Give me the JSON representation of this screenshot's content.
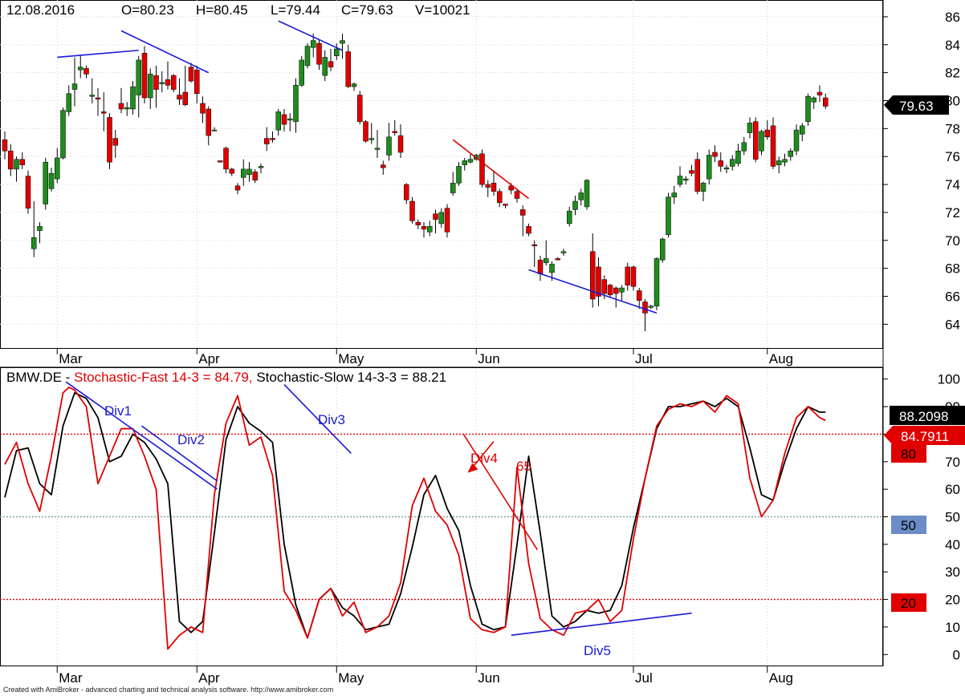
{
  "colors": {
    "up": "#1e8c1e",
    "down": "#e00000",
    "annotation_blue": "#1a1ad6",
    "annotation_red": "#e00000",
    "fast_line": "#e00000",
    "slow_line": "#000000",
    "badge_50": "#6b8cc7"
  },
  "price_panel": {
    "header": {
      "date": "12.08.2016",
      "open": "O=80.23",
      "high": "H=80.45",
      "low": "L=79.44",
      "close": "C=79.63",
      "volume": "V=10021"
    },
    "last_price_badge": "79.63"
  },
  "stoch_panel": {
    "title_symbol": "BMW.DE - ",
    "title_fast": "Stochastic-Fast 14-3 = 84.79,",
    "title_slow": " Stochastic-Slow 14-3-3 = 88.21",
    "badge_slow": "88.2098",
    "badge_fast": "84.7911",
    "badge_80": "80",
    "badge_50": "50",
    "badge_20": "20",
    "annotations": {
      "div1": "Div1",
      "div2": "Div2",
      "div3": "Div3",
      "div4": "Div4",
      "div5": "Div5",
      "val65": "65"
    }
  },
  "footer": "Created with AmiBroker - advanced charting and technical analysis software. http://www.amibroker.com",
  "chart_data": [
    {
      "type": "candlestick",
      "title": "BMW.DE",
      "x_tick_labels": [
        "Mar",
        "Apr",
        "May",
        "Jun",
        "Jul",
        "Aug"
      ],
      "y_tick_labels": [
        64,
        66,
        68,
        70,
        72,
        74,
        76,
        78,
        80,
        82,
        84,
        86
      ],
      "ylim": [
        62.3,
        87.2
      ],
      "grid": true,
      "candles": [
        [
          77.2,
          77.8,
          75.8,
          76.4
        ],
        [
          76.4,
          76.9,
          74.6,
          75.1
        ],
        [
          75.1,
          76.0,
          74.2,
          75.8
        ],
        [
          75.8,
          76.3,
          75.1,
          75.4
        ],
        [
          74.6,
          75.0,
          71.9,
          72.3
        ],
        [
          69.4,
          72.8,
          68.8,
          70.2
        ],
        [
          70.7,
          71.3,
          69.8,
          71.0
        ],
        [
          72.6,
          75.9,
          72.2,
          75.6
        ],
        [
          73.7,
          75.2,
          73.5,
          74.8
        ],
        [
          74.4,
          76.6,
          74.1,
          75.9
        ],
        [
          75.9,
          79.5,
          75.8,
          79.3
        ],
        [
          79.2,
          81.1,
          78.9,
          80.5
        ],
        [
          80.8,
          83.1,
          79.6,
          81.2
        ],
        [
          82.2,
          83.2,
          81.6,
          82.4
        ],
        [
          82.3,
          82.5,
          81.6,
          81.9
        ],
        [
          80.3,
          81.6,
          79.8,
          80.4
        ],
        [
          80.2,
          80.9,
          78.9,
          80.1
        ],
        [
          79.2,
          80.6,
          77.8,
          79.1
        ],
        [
          78.8,
          79.1,
          75.1,
          75.6
        ],
        [
          77.3,
          77.9,
          75.9,
          76.8
        ],
        [
          79.8,
          80.9,
          79.1,
          79.4
        ],
        [
          79.4,
          79.9,
          78.9,
          79.5
        ],
        [
          79.4,
          81.4,
          79.0,
          81.0
        ],
        [
          80.4,
          83.2,
          78.8,
          82.9
        ],
        [
          83.4,
          83.9,
          79.8,
          80.2
        ],
        [
          80.2,
          82.3,
          79.4,
          81.9
        ],
        [
          81.8,
          82.5,
          79.5,
          80.8
        ],
        [
          81.2,
          82.1,
          80.6,
          81.3
        ],
        [
          81.5,
          82.8,
          80.8,
          81.1
        ],
        [
          81.8,
          81.9,
          80.6,
          80.8
        ],
        [
          80.4,
          81.6,
          79.7,
          80.1
        ],
        [
          80.6,
          82.5,
          79.6,
          79.7
        ],
        [
          82.4,
          82.7,
          81.3,
          81.4
        ],
        [
          82.2,
          82.5,
          79.8,
          80.5
        ],
        [
          79.8,
          80.3,
          78.4,
          79.1
        ],
        [
          79.4,
          79.6,
          76.8,
          77.5
        ],
        [
          77.9,
          78.1,
          77.8,
          77.9
        ],
        [
          75.7,
          75.7,
          75.6,
          75.6
        ],
        [
          76.6,
          76.7,
          74.8,
          75.1
        ],
        [
          75.1,
          75.2,
          74.6,
          74.8
        ],
        [
          73.9,
          74.1,
          73.3,
          73.6
        ],
        [
          74.5,
          75.8,
          73.9,
          75.1
        ],
        [
          74.7,
          75.6,
          74.2,
          75.1
        ],
        [
          74.9,
          75.1,
          74.1,
          74.3
        ],
        [
          75.2,
          75.5,
          74.8,
          75.3
        ],
        [
          77.3,
          78.1,
          76.4,
          76.9
        ],
        [
          77.3,
          77.8,
          77.0,
          77.2
        ],
        [
          77.9,
          79.4,
          77.5,
          79.2
        ],
        [
          79.0,
          79.4,
          77.8,
          78.3
        ],
        [
          78.6,
          79.1,
          77.8,
          78.7
        ],
        [
          78.5,
          81.6,
          77.7,
          81.1
        ],
        [
          81.1,
          83.2,
          81.0,
          82.9
        ],
        [
          82.5,
          84.1,
          82.3,
          83.9
        ],
        [
          83.8,
          84.8,
          83.1,
          84.3
        ],
        [
          84.1,
          84.4,
          82.2,
          82.6
        ],
        [
          81.8,
          83.6,
          81.4,
          83.1
        ],
        [
          82.8,
          83.7,
          82.1,
          82.4
        ],
        [
          83.2,
          84.1,
          82.9,
          83.7
        ],
        [
          84.1,
          84.8,
          83.0,
          84.3
        ],
        [
          83.5,
          84.0,
          80.9,
          81.0
        ],
        [
          81.0,
          81.3,
          80.7,
          81.2
        ],
        [
          80.4,
          80.7,
          78.3,
          78.5
        ],
        [
          78.5,
          78.6,
          77.0,
          77.1
        ],
        [
          77.2,
          78.4,
          76.9,
          77.3
        ],
        [
          76.5,
          77.9,
          75.9,
          76.6
        ],
        [
          75.4,
          75.7,
          74.7,
          75.2
        ],
        [
          76.1,
          78.4,
          75.7,
          77.4
        ],
        [
          77.8,
          78.6,
          77.5,
          77.7
        ],
        [
          77.5,
          78.3,
          75.9,
          76.3
        ],
        [
          74.0,
          74.1,
          72.6,
          72.9
        ],
        [
          72.8,
          73.1,
          71.2,
          71.4
        ],
        [
          71.3,
          71.5,
          70.8,
          71.1
        ],
        [
          71.0,
          71.3,
          70.2,
          70.8
        ],
        [
          70.6,
          71.4,
          70.3,
          71.0
        ],
        [
          71.9,
          72.2,
          70.5,
          71.5
        ],
        [
          71.2,
          72.3,
          70.9,
          72.0
        ],
        [
          72.3,
          72.6,
          70.2,
          70.6
        ],
        [
          73.4,
          74.9,
          73.2,
          74.1
        ],
        [
          74.1,
          75.6,
          73.9,
          75.3
        ],
        [
          75.4,
          75.9,
          75.0,
          75.7
        ],
        [
          75.6,
          76.2,
          75.5,
          75.8
        ],
        [
          75.8,
          76.2,
          75.7,
          76.1
        ],
        [
          76.2,
          76.5,
          73.8,
          74.0
        ],
        [
          74.0,
          74.3,
          73.1,
          73.8
        ],
        [
          74.1,
          75.0,
          73.2,
          73.5
        ],
        [
          73.5,
          73.7,
          72.4,
          72.7
        ],
        [
          72.6,
          72.6,
          72.3,
          72.5
        ],
        [
          73.9,
          74.1,
          73.3,
          73.6
        ],
        [
          73.5,
          73.6,
          72.7,
          73.0
        ],
        [
          72.2,
          72.5,
          70.3,
          71.8
        ],
        [
          71.0,
          71.2,
          70.3,
          70.5
        ],
        [
          69.7,
          70.0,
          68.1,
          69.6
        ],
        [
          68.6,
          68.9,
          67.1,
          67.6
        ],
        [
          68.4,
          70.0,
          68.2,
          68.7
        ],
        [
          67.7,
          68.5,
          67.1,
          68.3
        ],
        [
          68.7,
          68.8,
          68.6,
          68.6
        ],
        [
          69.1,
          69.4,
          68.9,
          69.2
        ],
        [
          71.2,
          72.4,
          71.0,
          72.1
        ],
        [
          72.2,
          73.2,
          71.8,
          72.8
        ],
        [
          72.9,
          73.7,
          72.5,
          73.4
        ],
        [
          72.4,
          74.4,
          72.2,
          74.3
        ],
        [
          69.2,
          70.5,
          65.2,
          65.8
        ],
        [
          68.1,
          68.8,
          65.3,
          66.0
        ],
        [
          67.2,
          67.5,
          65.8,
          66.2
        ],
        [
          66.8,
          66.9,
          65.9,
          66.1
        ],
        [
          66.6,
          66.7,
          65.2,
          66.2
        ],
        [
          66.3,
          66.8,
          65.7,
          66.6
        ],
        [
          68.1,
          68.4,
          66.4,
          66.8
        ],
        [
          68.1,
          68.2,
          66.4,
          66.7
        ],
        [
          66.4,
          66.6,
          65.1,
          65.7
        ],
        [
          65.6,
          65.8,
          63.5,
          64.8
        ],
        [
          65.2,
          65.4,
          65.1,
          65.3
        ],
        [
          65.3,
          68.8,
          65.0,
          68.7
        ],
        [
          68.6,
          70.2,
          68.4,
          70.1
        ],
        [
          70.4,
          73.4,
          70.2,
          73.1
        ],
        [
          73.1,
          73.9,
          72.6,
          73.4
        ],
        [
          74.0,
          75.3,
          73.8,
          74.6
        ],
        [
          74.3,
          74.6,
          74.0,
          74.4
        ],
        [
          75.0,
          75.4,
          74.6,
          74.8
        ],
        [
          75.8,
          76.3,
          73.3,
          73.5
        ],
        [
          73.5,
          74.2,
          72.8,
          74.1
        ],
        [
          74.4,
          76.5,
          74.0,
          76.1
        ],
        [
          76.3,
          76.8,
          75.6,
          76.0
        ],
        [
          75.7,
          76.3,
          74.9,
          75.3
        ],
        [
          75.1,
          75.4,
          74.8,
          75.2
        ],
        [
          75.3,
          76.1,
          75.0,
          75.8
        ],
        [
          75.5,
          76.9,
          75.3,
          76.4
        ],
        [
          76.4,
          77.4,
          76.1,
          77.0
        ],
        [
          77.7,
          78.8,
          77.3,
          78.4
        ],
        [
          78.5,
          78.8,
          75.6,
          75.8
        ],
        [
          76.4,
          77.9,
          76.1,
          77.8
        ],
        [
          77.9,
          78.6,
          77.2,
          77.4
        ],
        [
          78.2,
          78.8,
          75.1,
          75.3
        ],
        [
          75.4,
          76.0,
          74.8,
          75.7
        ],
        [
          75.6,
          76.2,
          75.3,
          75.8
        ],
        [
          76.0,
          76.6,
          75.7,
          76.4
        ],
        [
          76.4,
          78.3,
          76.1,
          77.9
        ],
        [
          77.6,
          78.4,
          77.1,
          78.2
        ],
        [
          78.5,
          80.5,
          78.2,
          80.3
        ],
        [
          79.9,
          80.3,
          79.4,
          80.2
        ],
        [
          80.6,
          81.1,
          79.9,
          80.4
        ],
        [
          80.2,
          80.5,
          79.4,
          79.6
        ]
      ]
    },
    {
      "type": "line",
      "title": "Stochastic-Fast 14-3 / Stochastic-Slow 14-3-3",
      "x_tick_labels": [
        "Mar",
        "Apr",
        "May",
        "Jun",
        "Jul",
        "Aug"
      ],
      "y_tick_labels": [
        0,
        10,
        20,
        30,
        40,
        50,
        60,
        70,
        80,
        90,
        100
      ],
      "ylim": [
        -4,
        104
      ],
      "reference_levels": [
        20,
        50,
        80
      ],
      "series": [
        {
          "name": "Stochastic-Fast 14-3",
          "x": [
            0,
            2,
            4,
            6,
            8,
            10,
            11,
            12,
            14,
            16,
            18,
            20,
            22,
            24,
            26,
            28,
            30,
            32,
            34,
            36,
            38,
            40,
            42,
            44,
            46,
            48,
            50,
            52,
            54,
            56,
            58,
            60,
            62,
            64,
            66,
            68,
            70,
            72,
            74,
            76,
            78,
            80,
            82,
            84,
            86,
            88,
            90,
            92,
            94,
            96,
            98,
            100,
            102,
            104,
            106,
            108,
            110,
            112,
            114,
            116,
            118,
            120,
            122,
            124,
            126,
            128,
            130,
            132,
            134,
            136,
            138,
            140,
            141
          ],
          "values": [
            69,
            77,
            62,
            52,
            72,
            95,
            97,
            96,
            90,
            62,
            72,
            82,
            82,
            72,
            60,
            2,
            7,
            10,
            8,
            58,
            84,
            94,
            76,
            79,
            65,
            23,
            16,
            6,
            20,
            24,
            14,
            19,
            8,
            10,
            14,
            26,
            54,
            64,
            52,
            47,
            36,
            13,
            9,
            8,
            10,
            68,
            33,
            13,
            9,
            7,
            15,
            16,
            20,
            12,
            16,
            42,
            64,
            83,
            89,
            91,
            90,
            92,
            88,
            94,
            91,
            64,
            50,
            56,
            73,
            86,
            90,
            86,
            85
          ]
        },
        {
          "name": "Stochastic-Slow 14-3-3",
          "x": [
            0,
            2,
            4,
            6,
            8,
            10,
            12,
            14,
            16,
            18,
            20,
            22,
            24,
            26,
            28,
            30,
            32,
            34,
            36,
            38,
            40,
            42,
            44,
            46,
            48,
            50,
            52,
            54,
            56,
            58,
            60,
            62,
            64,
            66,
            68,
            70,
            72,
            74,
            76,
            78,
            80,
            82,
            84,
            86,
            88,
            90,
            92,
            94,
            96,
            98,
            100,
            102,
            104,
            106,
            108,
            110,
            112,
            114,
            116,
            118,
            120,
            122,
            124,
            126,
            128,
            130,
            132,
            134,
            136,
            138,
            140,
            141
          ],
          "values": [
            57,
            74,
            75,
            62,
            58,
            83,
            95,
            93,
            86,
            70,
            72,
            80,
            77,
            71,
            62,
            12,
            8,
            12,
            44,
            78,
            90,
            84,
            81,
            77,
            40,
            18,
            6,
            20,
            24,
            17,
            14,
            9,
            10,
            11,
            22,
            39,
            58,
            65,
            53,
            45,
            25,
            11,
            9,
            10,
            40,
            72,
            44,
            14,
            10,
            12,
            16,
            15,
            16,
            25,
            46,
            64,
            82,
            90,
            90,
            91,
            92,
            90,
            93,
            90,
            75,
            58,
            56,
            70,
            82,
            90,
            88,
            88
          ]
        }
      ]
    }
  ]
}
